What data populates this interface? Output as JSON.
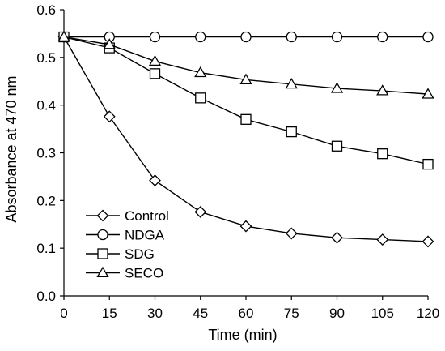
{
  "chart_data": {
    "type": "line",
    "xlabel": "Time (min)",
    "ylabel": "Absorbance at 470 nm",
    "x": [
      0,
      15,
      30,
      45,
      60,
      75,
      90,
      105,
      120
    ],
    "xlim": [
      0,
      120
    ],
    "ylim": [
      0,
      0.6
    ],
    "xticks": [
      "0",
      "15",
      "30",
      "45",
      "60",
      "75",
      "90",
      "105",
      "120"
    ],
    "yticks": [
      "0.0",
      "0.1",
      "0.2",
      "0.3",
      "0.4",
      "0.5",
      "0.6"
    ],
    "grid": false,
    "legend_position": "bottom-left",
    "line_color": "#000000",
    "series": [
      {
        "name": "Control",
        "marker": "diamond",
        "values": [
          0.543,
          0.376,
          0.242,
          0.176,
          0.146,
          0.131,
          0.122,
          0.118,
          0.114
        ]
      },
      {
        "name": "NDGA",
        "marker": "circle",
        "values": [
          0.543,
          0.543,
          0.543,
          0.543,
          0.543,
          0.543,
          0.543,
          0.543,
          0.543
        ]
      },
      {
        "name": "SDG",
        "marker": "square",
        "values": [
          0.543,
          0.52,
          0.466,
          0.415,
          0.37,
          0.344,
          0.314,
          0.298,
          0.276
        ]
      },
      {
        "name": "SECO",
        "marker": "triangle",
        "values": [
          0.543,
          0.527,
          0.492,
          0.468,
          0.453,
          0.444,
          0.435,
          0.43,
          0.423
        ]
      }
    ]
  }
}
